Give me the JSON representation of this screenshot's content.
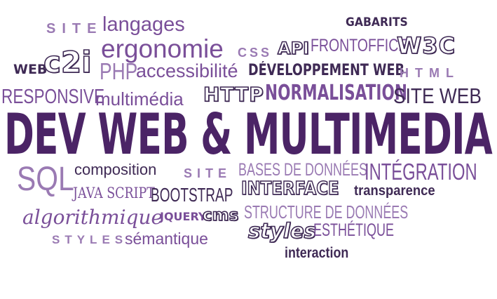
{
  "colors": {
    "dark": "#4a2a6a",
    "purple": "#7a4f99",
    "light": "#9a7ab3",
    "headline": "#4b2466"
  },
  "cloud": {
    "headline": "DEV WEB & MULTIMEDIA",
    "words": {
      "site_1": "SITE",
      "langages": "langages",
      "gabarits": "GABARITS",
      "ergonomie": "ergonomie",
      "css": "CSS",
      "api": "API",
      "frontoffice": "FRONTOFFICE",
      "w3c": "W3C",
      "web": "WEB",
      "c2i": "c2i",
      "php": "PHP",
      "accessibilite": "accessibilité",
      "developpement_web": "DÉVELOPPEMENT WEB",
      "html": "HTML",
      "responsive": "RESPONSIVE",
      "multimedia": "multimédia",
      "http": "HTTP",
      "normalisation": "NORMALISATION",
      "site_web": "SITE WEB",
      "sql": "SQL",
      "composition": "composition",
      "site_2": "SITE",
      "bases_de_donnees": "BASES DE DONNÉES",
      "integration": "INTÉGRATION",
      "java_script": "JAVA SCRIPT",
      "bootstrap": "BOOTSTRAP",
      "interface": "INTERFACE",
      "transparence": "transparence",
      "algorithmique": "algorithmique",
      "jquery": "JQUERY",
      "cms": "cms",
      "structure_de_donnees": "STRUCTURE DE DONNÉES",
      "styles_1": "STYLES",
      "semantique": "sémantique",
      "styles_2": "styles",
      "esthetique": "ESTHÉTIQUE",
      "interaction": "interaction"
    }
  }
}
